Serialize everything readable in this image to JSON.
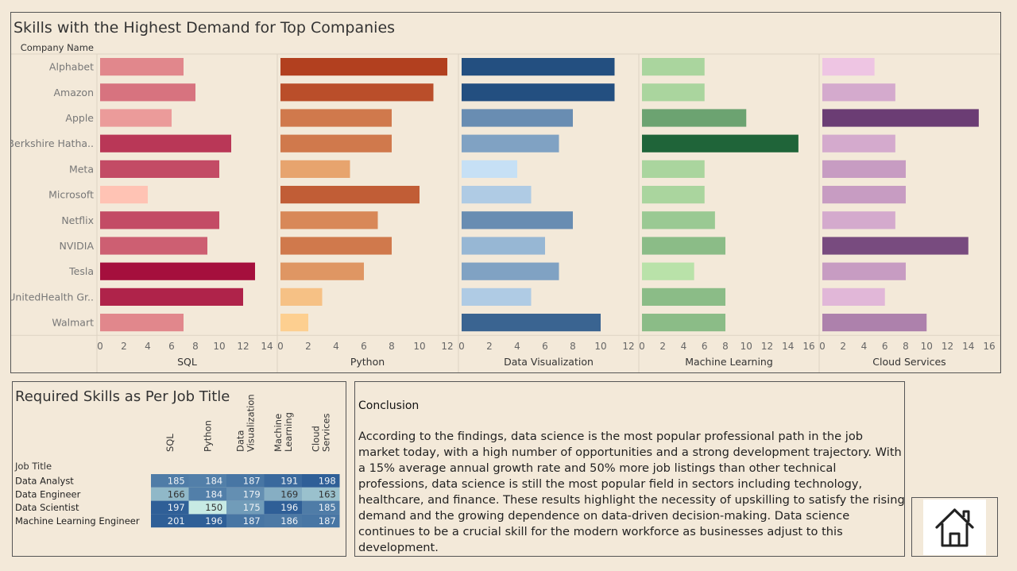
{
  "chart_title": "Skills with the Highest Demand for Top Companies",
  "row_header": "Company Name",
  "chart_data": [
    {
      "type": "bar",
      "orientation": "horizontal",
      "title": "Skills with the Highest Demand for Top Companies",
      "categories": [
        "Alphabet",
        "Amazon",
        "Apple",
        "Berkshire Hatha..",
        "Meta",
        "Microsoft",
        "Netflix",
        "NVIDIA",
        "Tesla",
        "UnitedHealth Gr..",
        "Walmart"
      ],
      "panels": [
        {
          "name": "SQL",
          "values": [
            7,
            8,
            6,
            11,
            10,
            4,
            10,
            9,
            13,
            12,
            7
          ],
          "xlim": [
            0,
            14
          ],
          "ticks": [
            0,
            2,
            4,
            6,
            8,
            10,
            12,
            14
          ],
          "palette": "reds"
        },
        {
          "name": "Python",
          "values": [
            12,
            11,
            8,
            8,
            5,
            10,
            7,
            8,
            6,
            3,
            2
          ],
          "xlim": [
            0,
            12
          ],
          "ticks": [
            0,
            2,
            4,
            6,
            8,
            10,
            12
          ],
          "palette": "oranges"
        },
        {
          "name": "Data Visualization",
          "values": [
            11,
            11,
            8,
            7,
            4,
            5,
            8,
            6,
            7,
            5,
            10
          ],
          "xlim": [
            0,
            12
          ],
          "ticks": [
            0,
            2,
            4,
            6,
            8,
            10,
            12
          ],
          "palette": "blues"
        },
        {
          "name": "Machine Learning",
          "values": [
            6,
            6,
            10,
            15,
            6,
            6,
            7,
            8,
            5,
            8,
            8
          ],
          "xlim": [
            0,
            16
          ],
          "ticks": [
            0,
            2,
            4,
            6,
            8,
            10,
            12,
            14,
            16
          ],
          "palette": "greens"
        },
        {
          "name": "Cloud Services",
          "values": [
            5,
            7,
            15,
            7,
            8,
            8,
            7,
            14,
            8,
            6,
            10
          ],
          "xlim": [
            0,
            16
          ],
          "ticks": [
            0,
            2,
            4,
            6,
            8,
            10,
            12,
            14,
            16
          ],
          "palette": "purples"
        }
      ]
    },
    {
      "type": "heatmap",
      "title": "Required Skills as Per Job Title",
      "row_header": "Job Title",
      "columns": [
        "SQL",
        "Python",
        "Data Visualization",
        "Machine Learning",
        "Cloud Services"
      ],
      "rows": [
        "Data Analyst",
        "Data Engineer",
        "Data Scientist",
        "Machine Learning Engineer"
      ],
      "values": [
        [
          185,
          184,
          187,
          191,
          198
        ],
        [
          166,
          184,
          179,
          169,
          163
        ],
        [
          197,
          150,
          175,
          196,
          185
        ],
        [
          201,
          196,
          187,
          186,
          187
        ]
      ],
      "range": [
        150,
        201
      ]
    }
  ],
  "matrix": {
    "title": "Required Skills as Per Job Title",
    "row_header": "Job Title",
    "column_labels": [
      [
        "SQL"
      ],
      [
        "Python"
      ],
      [
        "Data",
        "Visualization"
      ],
      [
        "Machine",
        "Learning"
      ],
      [
        "Cloud",
        "Services"
      ]
    ]
  },
  "conclusion": {
    "heading": "Conclusion",
    "body": "According to the findings, data science is the most popular professional path in the job market today, with a high number of opportunities and a strong development trajectory. With a 15% average annual growth rate and 50% more job listings than other technical professions, data science is still the most popular field in sectors including technology, healthcare, and finance. These results highlight the necessity of upskilling to satisfy the rising demand and the growing dependence on data-driven decision-making. Data science continues to be a crucial skill for the modern workforce as businesses adjust to this development."
  },
  "home": {
    "icon": "home-icon"
  }
}
